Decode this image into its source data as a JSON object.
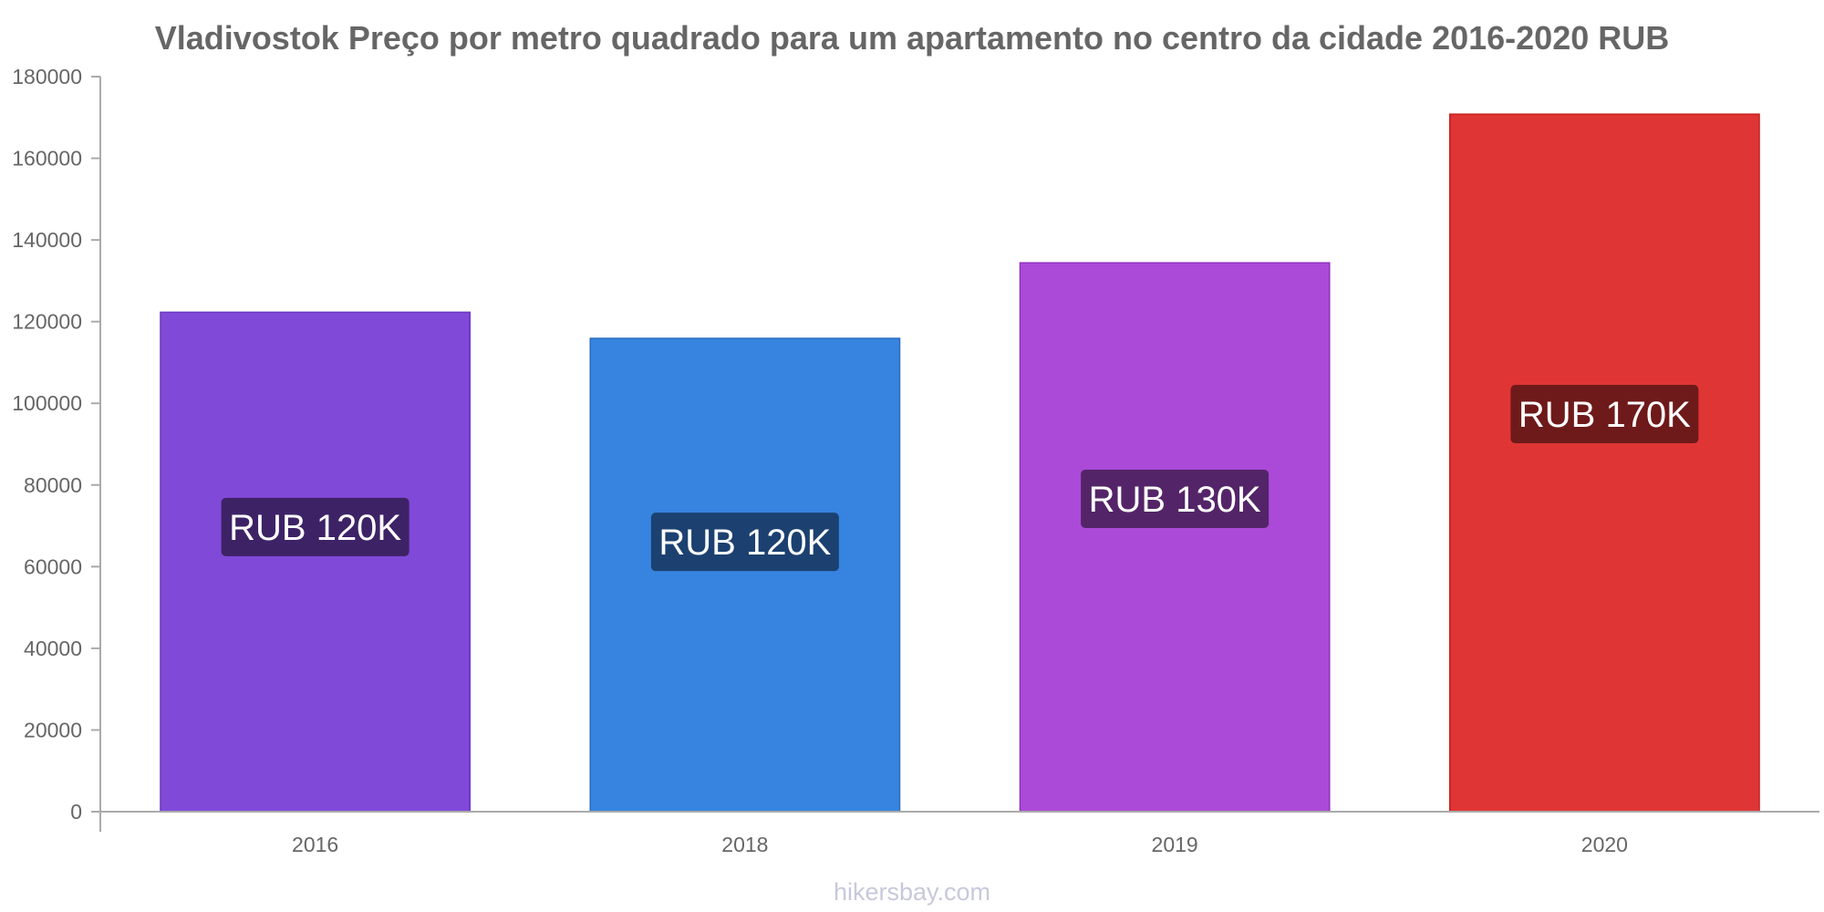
{
  "chart_data": {
    "type": "bar",
    "title": "Vladivostok Preço por metro quadrado para um apartamento no centro da cidade 2016-2020 RUB",
    "categories": [
      "2016",
      "2018",
      "2019",
      "2020"
    ],
    "values": [
      122300,
      115900,
      134400,
      170800
    ],
    "value_labels": [
      "RUB 120K",
      "RUB 120K",
      "RUB 130K",
      "RUB 170K"
    ],
    "bar_colors": [
      "#8049d8",
      "#3684e0",
      "#ab4ad8",
      "#e03535"
    ],
    "bar_stroke_colors": [
      "#6a38c0",
      "#2a6cc0",
      "#9030c0",
      "#c82020"
    ],
    "label_bg_colors": [
      "#3d2266",
      "#1c4170",
      "#542468",
      "#6e1a1a"
    ],
    "yticks": [
      "0",
      "20000",
      "40000",
      "60000",
      "80000",
      "100000",
      "120000",
      "140000",
      "160000",
      "180000"
    ],
    "ylim": [
      0,
      180000
    ],
    "xlabel": "",
    "ylabel": "",
    "grid": false
  },
  "watermark": "hikersbay.com"
}
